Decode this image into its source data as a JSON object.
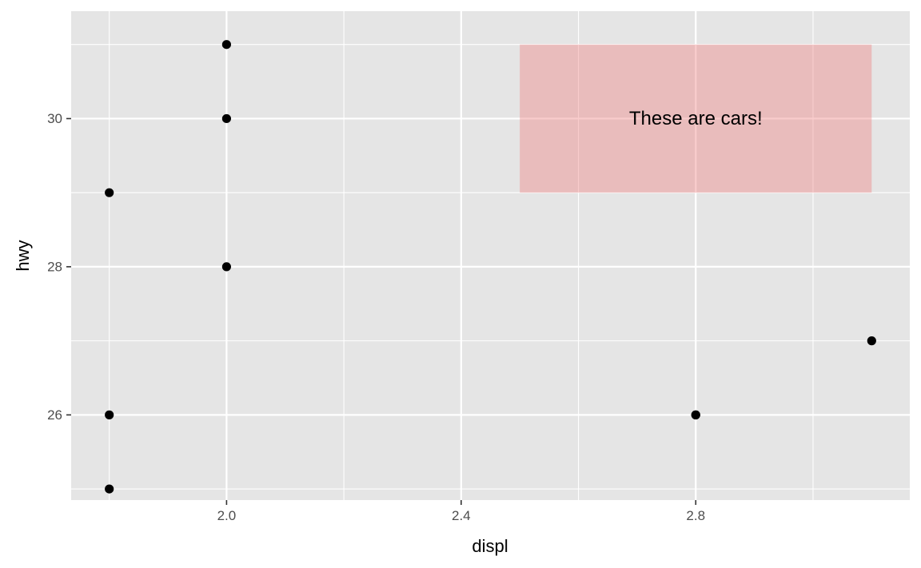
{
  "chart_data": {
    "type": "scatter",
    "title": "",
    "xlabel": "displ",
    "ylabel": "hwy",
    "xlim": [
      1.735,
      3.165
    ],
    "ylim": [
      24.85,
      31.45
    ],
    "x_ticks_major": [
      2.0,
      2.4,
      2.8
    ],
    "x_tick_labels": [
      "2.0",
      "2.4",
      "2.8"
    ],
    "x_ticks_minor": [
      1.8,
      2.2,
      2.6,
      3.0
    ],
    "y_ticks_major": [
      26,
      28,
      30
    ],
    "y_tick_labels": [
      "26",
      "28",
      "30"
    ],
    "y_ticks_minor": [
      25,
      27,
      29,
      31
    ],
    "grid": true,
    "points": [
      {
        "x": 1.8,
        "y": 29
      },
      {
        "x": 1.8,
        "y": 26
      },
      {
        "x": 1.8,
        "y": 25
      },
      {
        "x": 2.0,
        "y": 31
      },
      {
        "x": 2.0,
        "y": 30
      },
      {
        "x": 2.0,
        "y": 28
      },
      {
        "x": 2.8,
        "y": 26
      },
      {
        "x": 2.8,
        "y": 26
      },
      {
        "x": 3.1,
        "y": 27
      }
    ],
    "annotation": {
      "text": "These are cars!",
      "xmin": 2.5,
      "xmax": 3.1,
      "ymin": 29,
      "ymax": 31,
      "text_x": 2.8,
      "text_y": 30,
      "fill": "#f08080",
      "alpha": 0.4
    },
    "colors": {
      "panel_background": "#e5e5e5",
      "grid": "#ffffff",
      "point": "#000000",
      "tick_label": "#4d4d4d",
      "tick_mark": "#333333"
    }
  }
}
